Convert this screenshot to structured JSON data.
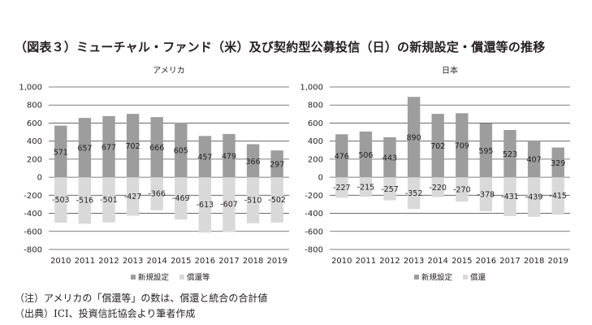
{
  "title": "（図表３）ミューチャル・ファンド（米）及び契約型公募投信（日）の新規設定・償還等の推移",
  "notes": {
    "note1": "（注）アメリカの「償還等」の数は、償還と統合の合計値",
    "source": "（出典）ICI、投資信託協会より筆者作成"
  },
  "colors": {
    "positive": "#9d9d9d",
    "negative": "#d9d9d9",
    "grid": "#555555",
    "text": "#231f20"
  },
  "chart_data": [
    {
      "type": "bar",
      "title": "アメリカ",
      "categories": [
        "2010",
        "2011",
        "2012",
        "2013",
        "2014",
        "2015",
        "2016",
        "2017",
        "2018",
        "2019"
      ],
      "ylim": [
        -800,
        1000
      ],
      "yticks": [
        -800,
        -600,
        -400,
        -200,
        0,
        200,
        400,
        600,
        800,
        1000
      ],
      "ytick_labels": [
        "-800",
        "-600",
        "-400",
        "-200",
        "0",
        "200",
        "400",
        "600",
        "800",
        "1,000"
      ],
      "grid": true,
      "legend_position": "bottom",
      "series": [
        {
          "name": "新規設定",
          "values": [
            571,
            657,
            677,
            702,
            666,
            605,
            457,
            479,
            366,
            297
          ]
        },
        {
          "name": "償還等",
          "values": [
            -503,
            -516,
            -501,
            -427,
            -366,
            -469,
            -613,
            -607,
            -510,
            -502
          ]
        }
      ]
    },
    {
      "type": "bar",
      "title": "日本",
      "categories": [
        "2010",
        "2011",
        "2012",
        "2013",
        "2014",
        "2015",
        "2016",
        "2017",
        "2018",
        "2019"
      ],
      "ylim": [
        -800,
        1000
      ],
      "yticks": [
        -800,
        -600,
        -400,
        -200,
        0,
        200,
        400,
        600,
        800,
        1000
      ],
      "ytick_labels": [
        "-800",
        "-600",
        "-400",
        "-200",
        "0",
        "200",
        "400",
        "600",
        "800",
        "1,000"
      ],
      "grid": true,
      "legend_position": "bottom",
      "series": [
        {
          "name": "新規設定",
          "values": [
            476,
            506,
            443,
            890,
            702,
            709,
            595,
            523,
            407,
            329
          ]
        },
        {
          "name": "償還",
          "values": [
            -227,
            -215,
            -257,
            -352,
            -220,
            -270,
            -378,
            -431,
            -439,
            -415
          ]
        }
      ]
    }
  ]
}
